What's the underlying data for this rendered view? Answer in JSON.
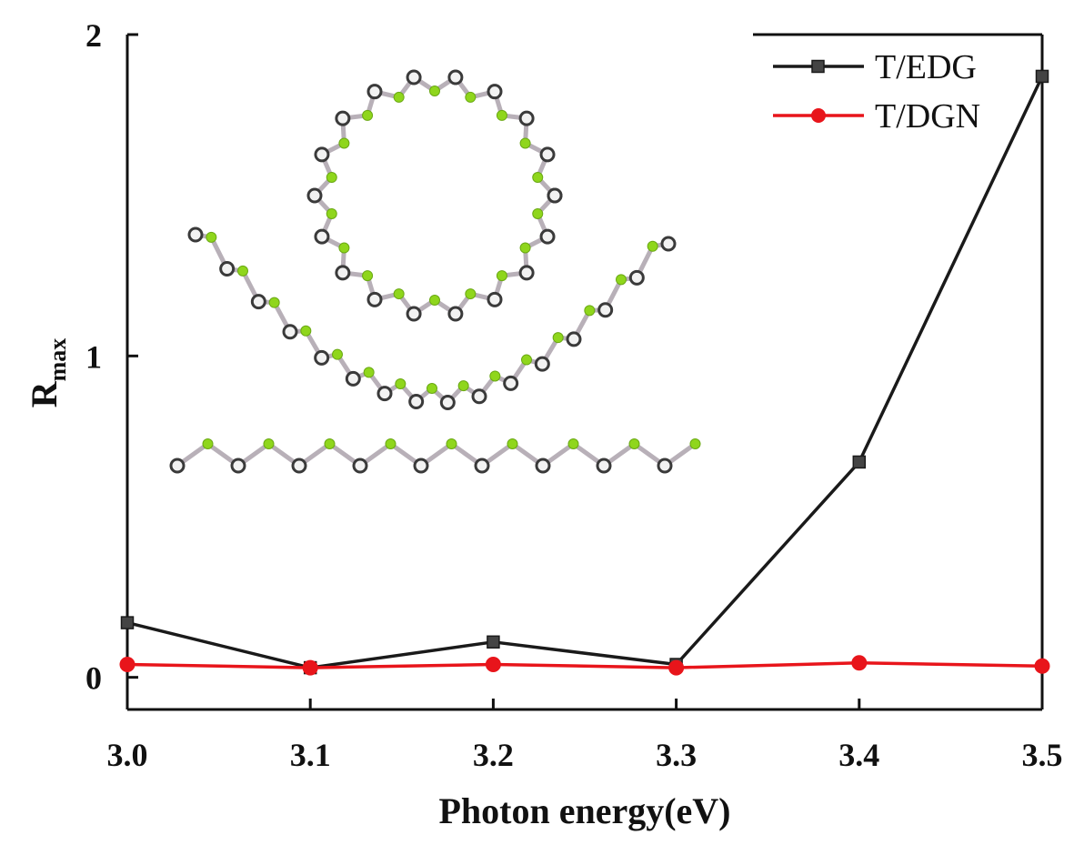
{
  "chart_data": {
    "type": "line",
    "title": "",
    "xlabel": "Photon energy(eV)",
    "ylabel": "R",
    "ylabel_sub": "max",
    "x": [
      3.0,
      3.1,
      3.2,
      3.3,
      3.4,
      3.5
    ],
    "x_tick_labels": [
      "3.0",
      "3.1",
      "3.2",
      "3.3",
      "3.4",
      "3.5"
    ],
    "xlim": [
      3.0,
      3.5
    ],
    "y_ticks": [
      0,
      1,
      2
    ],
    "y_tick_labels": [
      "0",
      "1",
      "2"
    ],
    "ylim": [
      -0.1,
      2.0
    ],
    "grid": false,
    "legend_position": "top-right",
    "series": [
      {
        "name": "T/EDG",
        "color": "#1a1a1a",
        "marker": "square",
        "values": [
          0.17,
          0.03,
          0.11,
          0.04,
          0.67,
          1.87
        ]
      },
      {
        "name": "T/DGN",
        "color": "#e8151b",
        "marker": "circle",
        "values": [
          0.04,
          0.03,
          0.04,
          0.03,
          0.045,
          0.035
        ]
      }
    ],
    "inset": {
      "description_icon": "molecular-structures-illustration",
      "atom_color_primary": "#8fd61c",
      "atom_color_secondary": "#3a3a3a"
    }
  }
}
